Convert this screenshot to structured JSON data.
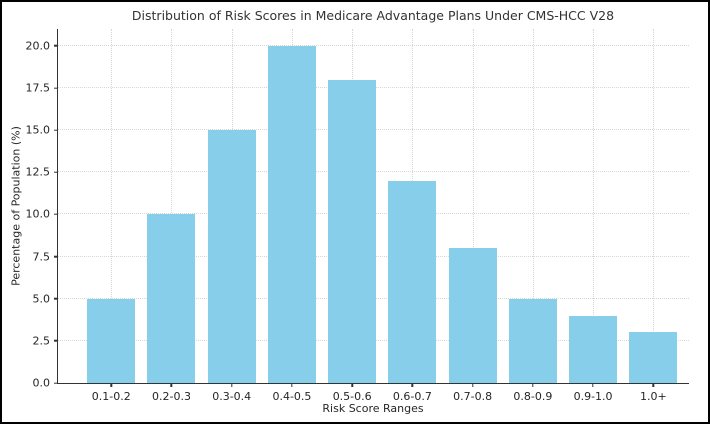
{
  "chart_data": {
    "type": "bar",
    "title": "Distribution of Risk Scores in Medicare Advantage Plans Under CMS-HCC V28",
    "xlabel": "Risk Score Ranges",
    "ylabel": "Percentage of Population (%)",
    "categories": [
      "0.1-0.2",
      "0.2-0.3",
      "0.3-0.4",
      "0.4-0.5",
      "0.5-0.6",
      "0.6-0.7",
      "0.7-0.8",
      "0.8-0.9",
      "0.9-1.0",
      "1.0+"
    ],
    "values": [
      5,
      10,
      15,
      20,
      18,
      12,
      8,
      5,
      4,
      3
    ],
    "ytick_labels": [
      "0.0",
      "2.5",
      "5.0",
      "7.5",
      "10.0",
      "12.5",
      "15.0",
      "17.5",
      "20.0"
    ],
    "yticks": [
      0,
      2.5,
      5,
      7.5,
      10,
      12.5,
      15,
      17.5,
      20
    ],
    "ylim": [
      0,
      21
    ],
    "grid": true,
    "legend": "none",
    "bar_color": "#87ceeb",
    "spine_color": "#333333",
    "grid_color": "#d7d7d7",
    "background_color": "#ffffff",
    "figure_border_color": "#000000"
  }
}
